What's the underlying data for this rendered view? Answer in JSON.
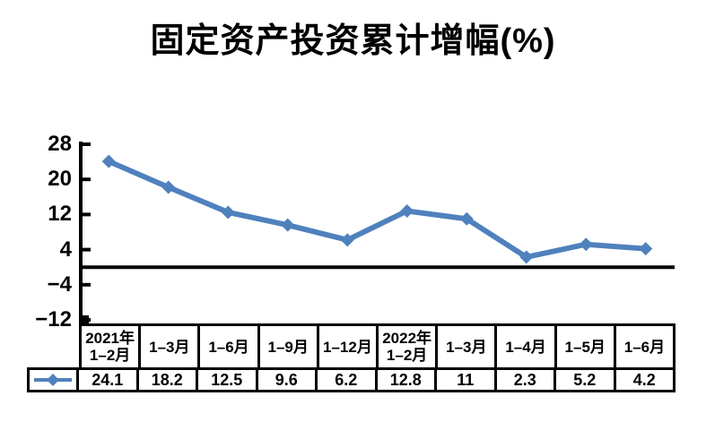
{
  "title": "固定资产投资累计增幅(%)",
  "chart_data": {
    "type": "line",
    "title": "固定资产投资累计增幅(%)",
    "categories": [
      "2021年1–2月",
      "1–3月",
      "1–6月",
      "1–9月",
      "1–12月",
      "2022年1–2月",
      "1–3月",
      "1–4月",
      "1–5月",
      "1–6月"
    ],
    "categories_display": [
      "2021年\n1–2月",
      "1–3月",
      "1–6月",
      "1–9月",
      "1–12月",
      "2022年\n1–2月",
      "1–3月",
      "1–4月",
      "1–5月",
      "1–6月"
    ],
    "values": [
      24.1,
      18.2,
      12.5,
      9.6,
      6.2,
      12.8,
      11,
      2.3,
      5.2,
      4.2
    ],
    "value_labels": [
      "24.1",
      "18.2",
      "12.5",
      "9.6",
      "6.2",
      "12.8",
      "11",
      "2.3",
      "5.2",
      "4.2"
    ],
    "yticks": [
      28,
      20,
      12,
      4,
      -4,
      -12
    ],
    "ytick_labels": [
      "28",
      "20",
      "12",
      "4",
      "−4",
      "−12"
    ],
    "ylim": [
      -12,
      28
    ],
    "xlabel": "",
    "ylabel": "",
    "grid": false,
    "legend_position": "table-left",
    "marker": "diamond",
    "line_color": "#4F81BD",
    "axis_color": "#000000",
    "table_border_color": "#000000"
  }
}
